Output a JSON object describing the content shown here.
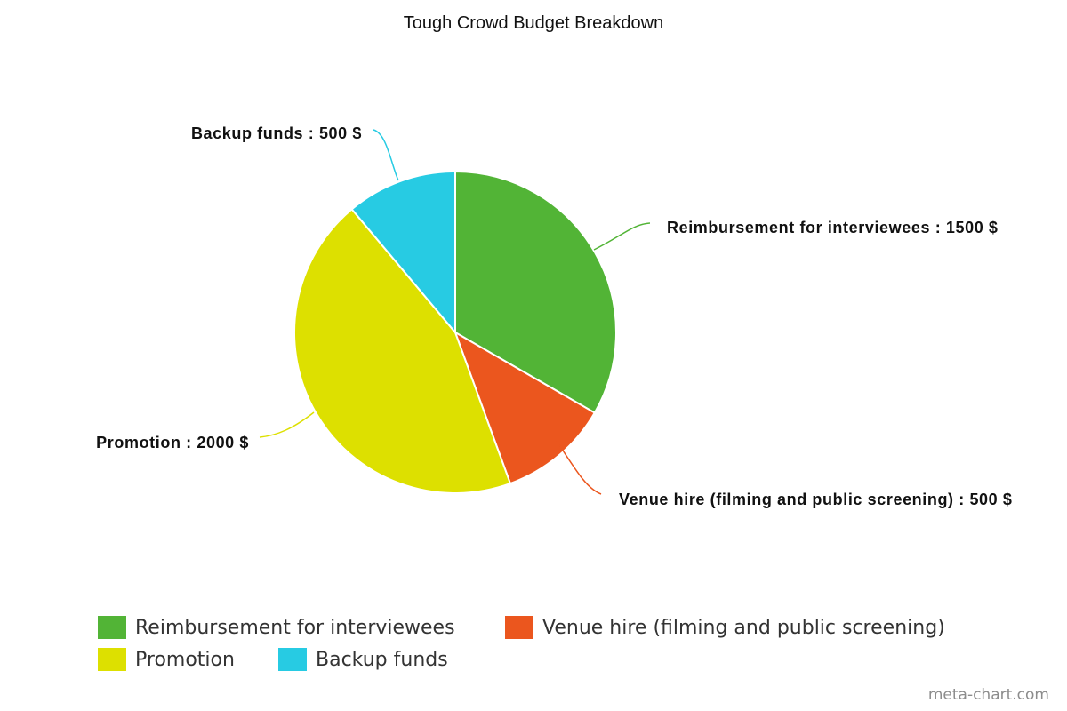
{
  "chart_data": {
    "type": "pie",
    "title": "Tough Crowd Budget Breakdown",
    "unit": "$",
    "start_angle_deg": 0,
    "direction": "clockwise",
    "slices": [
      {
        "label": "Reimbursement for interviewees",
        "value": 1500,
        "color": "#52b436",
        "data_label": "Reimbursement for interviewees : 1500 $"
      },
      {
        "label": "Venue hire (filming and public screening)",
        "value": 500,
        "color": "#eb561e",
        "data_label": "Venue hire (filming and public screening) : 500 $"
      },
      {
        "label": "Promotion",
        "value": 2000,
        "color": "#dde000",
        "data_label": "Promotion : 2000 $"
      },
      {
        "label": "Backup funds",
        "value": 500,
        "color": "#27cbe3",
        "data_label": "Backup funds : 500 $"
      }
    ],
    "legend": {
      "placement": "bottom",
      "entries": [
        "Reimbursement for interviewees",
        "Venue hire (filming and public screening)",
        "Promotion",
        "Backup funds"
      ]
    }
  },
  "watermark": "meta-chart.com"
}
